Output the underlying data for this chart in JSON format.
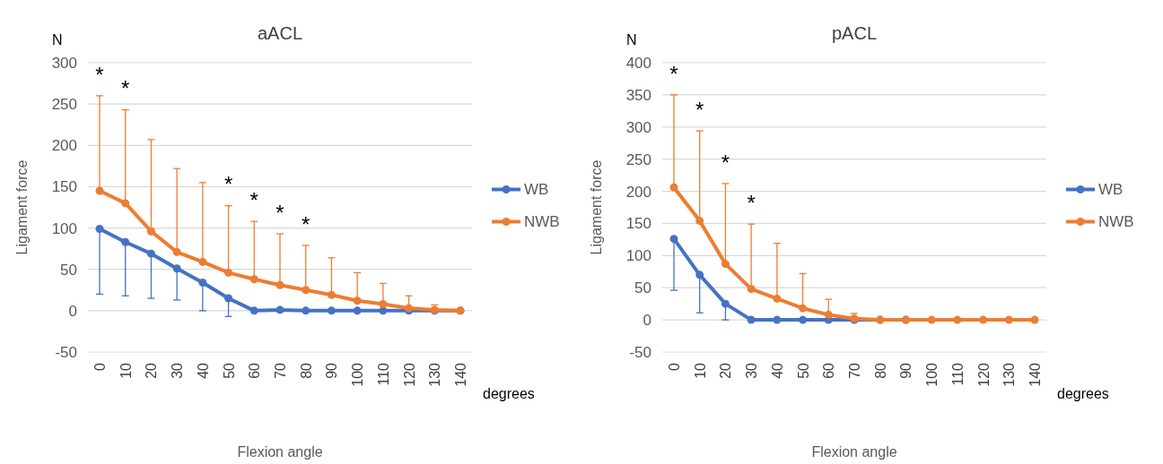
{
  "chart_data": [
    {
      "type": "line",
      "title": "aACL",
      "xlabel": "Flexion angle",
      "ylabel": "Ligament force",
      "categories": [
        "0",
        "10",
        "20",
        "30",
        "40",
        "50",
        "60",
        "70",
        "80",
        "90",
        "100",
        "110",
        "120",
        "130",
        "140"
      ],
      "ylim": [
        -50,
        300
      ],
      "yticks": [
        -50,
        0,
        50,
        100,
        150,
        200,
        250,
        300
      ],
      "grid": "y",
      "legend": "right",
      "marker": "circle",
      "line_style": "solid",
      "series": [
        {
          "name": "WB",
          "color": "#4472c4",
          "values": [
            99,
            83,
            69,
            51,
            34,
            15,
            0,
            1,
            0,
            0,
            0,
            0,
            0,
            0,
            0
          ],
          "errors": [
            [
              20,
              99
            ],
            [
              18,
              83
            ],
            [
              15,
              69
            ],
            [
              13,
              51
            ],
            [
              0,
              34
            ],
            [
              -7,
              15
            ],
            null,
            null,
            null,
            null,
            null,
            null,
            null,
            null,
            null
          ]
        },
        {
          "name": "NWB",
          "color": "#ed7d31",
          "values": [
            145,
            130,
            96,
            71,
            59,
            46,
            38,
            31,
            25,
            19,
            12,
            8,
            3,
            1,
            0
          ],
          "errors": [
            [
              145,
              260
            ],
            [
              130,
              243
            ],
            [
              96,
              207
            ],
            [
              71,
              172
            ],
            [
              59,
              155
            ],
            [
              46,
              127
            ],
            [
              38,
              108
            ],
            [
              31,
              93
            ],
            [
              25,
              79
            ],
            [
              19,
              64
            ],
            [
              12,
              46
            ],
            [
              8,
              33
            ],
            [
              3,
              18
            ],
            [
              1,
              7
            ],
            null
          ]
        }
      ],
      "annotations": [
        "N",
        "degrees",
        "*",
        "*",
        "*",
        "*",
        "*",
        "*"
      ]
    },
    {
      "type": "line",
      "title": "pACL",
      "xlabel": "Flexion angle",
      "ylabel": "Ligament force",
      "categories": [
        "0",
        "10",
        "20",
        "30",
        "40",
        "50",
        "60",
        "70",
        "80",
        "90",
        "100",
        "110",
        "120",
        "130",
        "140"
      ],
      "ylim": [
        -50,
        400
      ],
      "yticks": [
        -50,
        0,
        50,
        100,
        150,
        200,
        250,
        300,
        350,
        400
      ],
      "grid": "y",
      "legend": "right",
      "marker": "circle",
      "line_style": "solid",
      "series": [
        {
          "name": "WB",
          "color": "#4472c4",
          "values": [
            126,
            70,
            25,
            0,
            0,
            0,
            0,
            0,
            0,
            0,
            null,
            null,
            null,
            null,
            null
          ],
          "errors": [
            [
              46,
              126
            ],
            [
              11,
              70
            ],
            [
              0,
              25
            ],
            null,
            null,
            null,
            null,
            null,
            null,
            null,
            null,
            null,
            null,
            null,
            null
          ]
        },
        {
          "name": "NWB",
          "color": "#ed7d31",
          "values": [
            206,
            154,
            87,
            48,
            33,
            18,
            8,
            2,
            0,
            0,
            0,
            0,
            0,
            0,
            0
          ],
          "errors": [
            [
              206,
              350
            ],
            [
              154,
              294
            ],
            [
              87,
              212
            ],
            [
              48,
              149
            ],
            [
              33,
              119
            ],
            [
              18,
              72
            ],
            [
              8,
              32
            ],
            [
              2,
              10
            ],
            null,
            null,
            null,
            null,
            null,
            null,
            null
          ]
        }
      ],
      "annotations": [
        "N",
        "degrees",
        "*",
        "*",
        "*",
        "*"
      ]
    }
  ]
}
